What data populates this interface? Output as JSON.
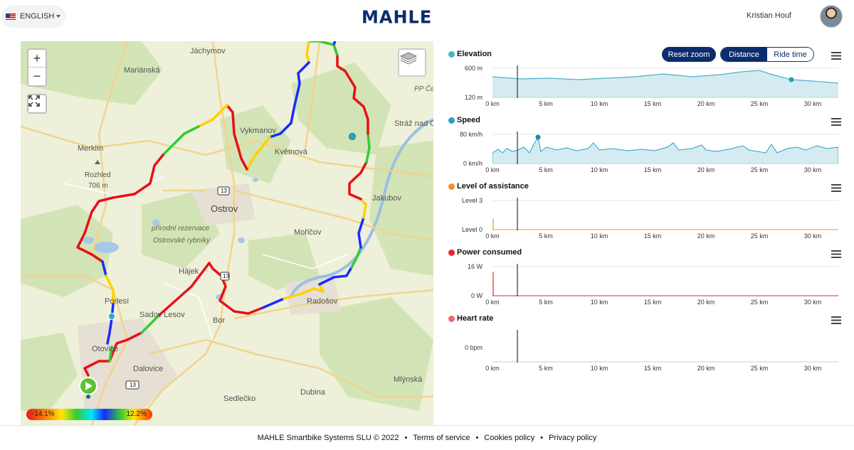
{
  "header": {
    "language": "ENGLISH",
    "logo": "MAHLE",
    "user_name": "Kristian Houf"
  },
  "map": {
    "labels": {
      "jachymov": "Jáchymov",
      "marianska": "Mariánská",
      "vykmanov": "Vykmanov",
      "kvetnova": "Květnová",
      "pp": "PP Če",
      "straz": "Stráž nad O",
      "merklin": "Merklín",
      "rozhled": "Rozhled",
      "rozhled_alt": "706 m",
      "ostrov": "Ostrov",
      "road_13a": "13",
      "jakubov": "Jakubov",
      "reserve_1": "přírodní rezervace",
      "reserve_2": "Ostrovské rybníky",
      "moricov": "Mořičov",
      "hajek": "Hájek",
      "road_13b": "13",
      "porlesi": "Porlesí",
      "radosov": "Radošov",
      "sadov": "Sadov Lesov",
      "bor": "Bor",
      "otovice": "Otovice",
      "dalovice": "Dalovice",
      "road_13c": "13",
      "mlynska": "Mlýnská",
      "dubina": "Dubina",
      "sedlecko": "Sedlečko"
    },
    "gradient": {
      "min": "-14.1%",
      "max": "12.2%"
    },
    "controls": {
      "zoom_in": "+",
      "zoom_out": "−"
    }
  },
  "charts": {
    "reset_zoom": "Reset zoom",
    "toggle": {
      "distance": "Distance",
      "ride_time": "Ride time"
    },
    "x_ticks": [
      "0 km",
      "5 km",
      "10 km",
      "15 km",
      "20 km",
      "25 km",
      "30 km"
    ],
    "elevation": {
      "title": "Elevation",
      "color": "#4bb0c8",
      "y_ticks": [
        "600 m",
        "120 m"
      ]
    },
    "speed": {
      "title": "Speed",
      "color": "#2a9fc4",
      "y_ticks": [
        "80 km/h",
        "0 km/h"
      ]
    },
    "assistance": {
      "title": "Level of assistance",
      "color": "#f0922b",
      "y_ticks": [
        "Level 3",
        "Level 0"
      ]
    },
    "power": {
      "title": "Power consumed",
      "color": "#e8262b",
      "y_ticks": [
        "16 W",
        "0 W"
      ]
    },
    "heart": {
      "title": "Heart rate",
      "color": "#f06470",
      "y_ticks": [
        "0 bpm"
      ]
    }
  },
  "footer": {
    "copyright": "MAHLE Smartbike Systems SLU © 2022",
    "sep": "•",
    "terms": "Terms of service",
    "cookies": "Cookies policy",
    "privacy": "Privacy policy"
  }
}
